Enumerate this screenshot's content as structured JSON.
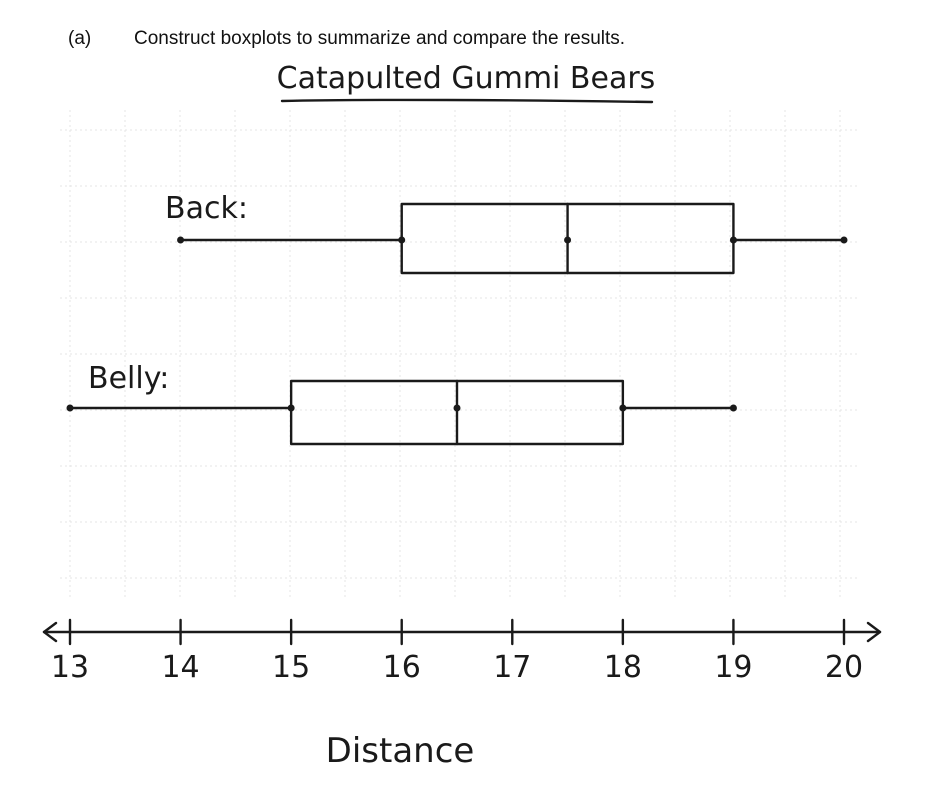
{
  "question": {
    "label": "(a)",
    "text": "Construct boxplots to summarize and compare the results."
  },
  "chart_data": {
    "type": "boxplot",
    "title": "Catapulted Gummi Bears",
    "xlabel": "Distance",
    "xlim": [
      13,
      20
    ],
    "ticks": [
      13,
      14,
      15,
      16,
      17,
      18,
      19,
      20
    ],
    "tick_labels": [
      "13",
      "14",
      "15",
      "16",
      "17",
      "18",
      "19",
      "20"
    ],
    "grid": true,
    "series": [
      {
        "name": "Back:",
        "min": 14,
        "q1": 16,
        "median": 17.5,
        "q3": 19,
        "max": 20
      },
      {
        "name": "Belly:",
        "min": 13,
        "q1": 15,
        "median": 16.5,
        "q3": 18,
        "max": 19
      }
    ]
  },
  "colors": {
    "ink": "#1a1a1a",
    "grid": "#e4e4e4"
  }
}
